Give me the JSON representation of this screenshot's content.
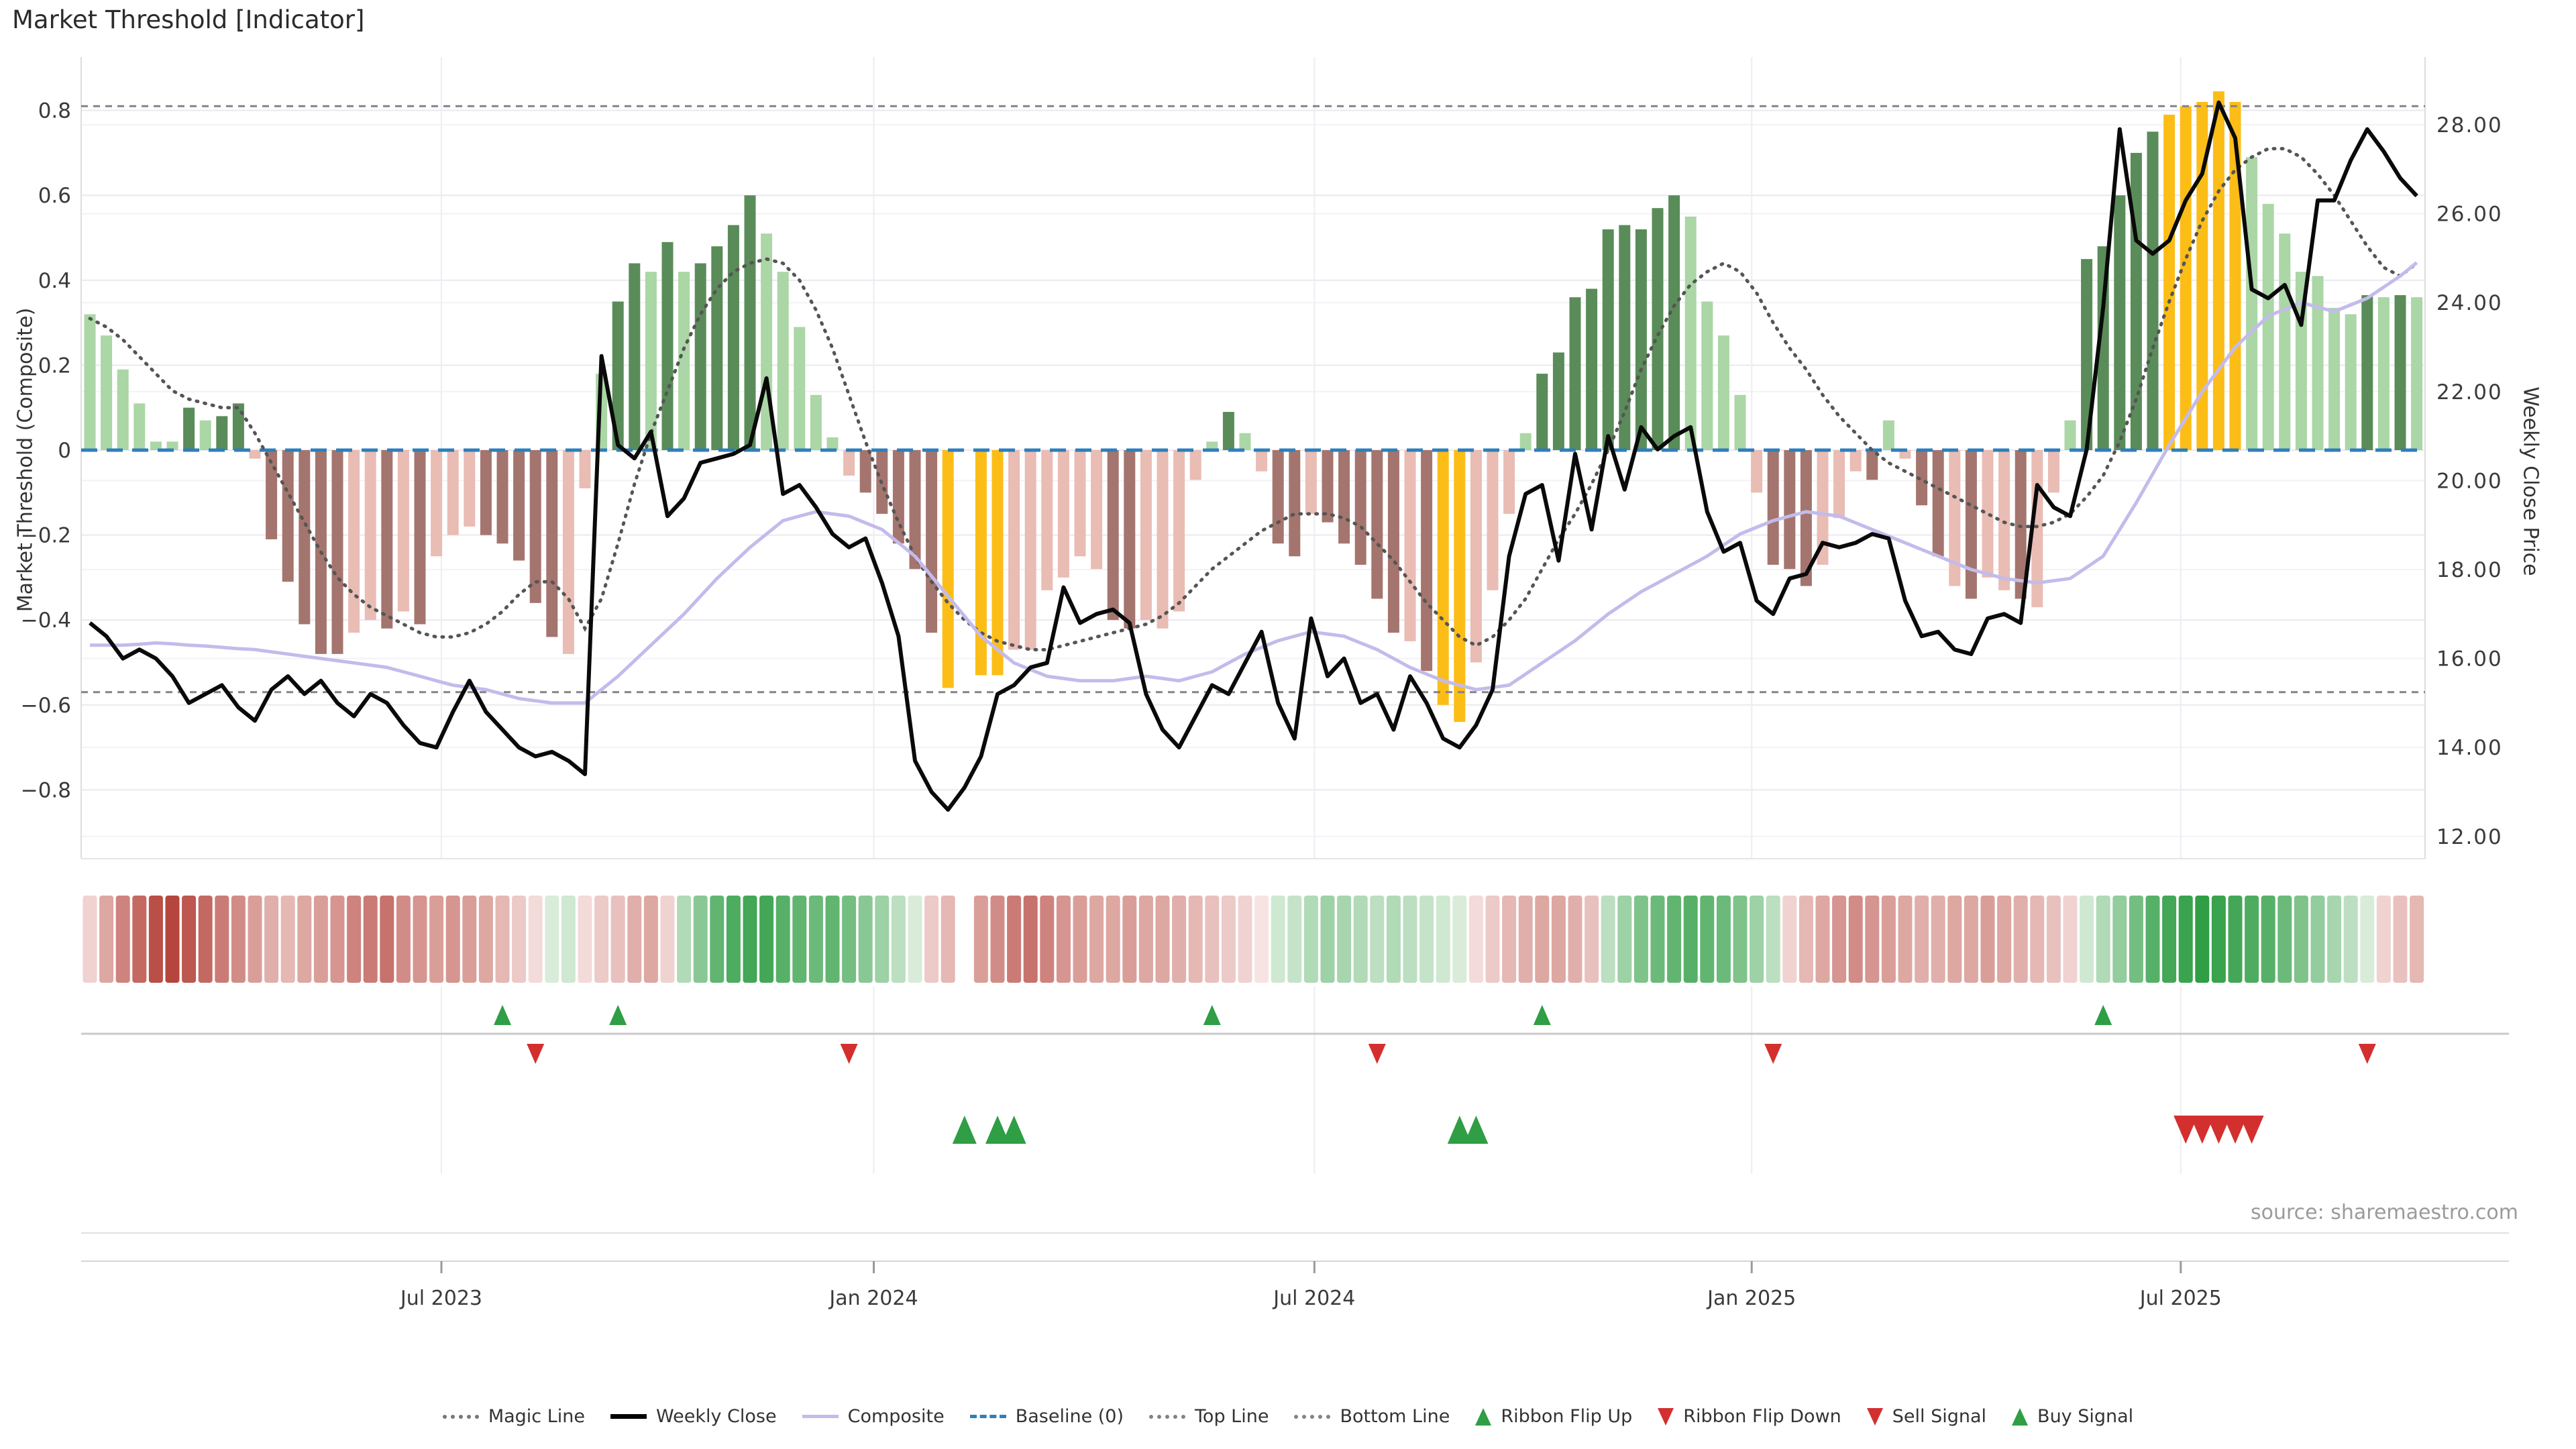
{
  "title": "Market Threshold [Indicator]",
  "source_note": "source: sharemaestro.com",
  "axes": {
    "left_label": "Market Threshold (Composite)",
    "right_label": "Weekly Close Price",
    "left_ticks": [
      {
        "v": 0.8,
        "label": "0.8"
      },
      {
        "v": 0.6,
        "label": "0.6"
      },
      {
        "v": 0.4,
        "label": "0.4"
      },
      {
        "v": 0.2,
        "label": "0.2"
      },
      {
        "v": 0.0,
        "label": "0"
      },
      {
        "v": -0.2,
        "label": "−0.2"
      },
      {
        "v": -0.4,
        "label": "−0.4"
      },
      {
        "v": -0.6,
        "label": "−0.6"
      },
      {
        "v": -0.8,
        "label": "−0.8"
      }
    ],
    "right_ticks": [
      {
        "v": 28,
        "label": "28.00"
      },
      {
        "v": 26,
        "label": "26.00"
      },
      {
        "v": 24,
        "label": "24.00"
      },
      {
        "v": 22,
        "label": "22.00"
      },
      {
        "v": 20,
        "label": "20.00"
      },
      {
        "v": 18,
        "label": "18.00"
      },
      {
        "v": 16,
        "label": "16.00"
      },
      {
        "v": 14,
        "label": "14.00"
      },
      {
        "v": 12,
        "label": "12.00"
      }
    ],
    "x_ticks": [
      {
        "label": "Jul 2023",
        "week": 21.3
      },
      {
        "label": "Jan 2024",
        "week": 47.5
      },
      {
        "label": "Jul 2024",
        "week": 74.2
      },
      {
        "label": "Jan 2025",
        "week": 100.7
      },
      {
        "label": "Jul 2025",
        "week": 126.7
      }
    ]
  },
  "chart_data": {
    "type": "bar+line combo (weekly)",
    "weeks": 142,
    "top_line": 0.81,
    "bottom_line": -0.57,
    "baseline": 0,
    "threshold_ylim": [
      -0.95,
      0.93
    ],
    "price_ylim": [
      11.5,
      28.6
    ],
    "threshold_values": [
      0.32,
      0.27,
      0.19,
      0.11,
      0.02,
      0.02,
      0.1,
      0.07,
      0.08,
      0.11,
      -0.02,
      -0.21,
      -0.31,
      -0.41,
      -0.48,
      -0.48,
      -0.43,
      -0.4,
      -0.42,
      -0.38,
      -0.41,
      -0.25,
      -0.2,
      -0.18,
      -0.2,
      -0.22,
      -0.26,
      -0.36,
      -0.44,
      -0.48,
      -0.09,
      0.18,
      0.35,
      0.44,
      0.42,
      0.49,
      0.42,
      0.44,
      0.48,
      0.53,
      0.6,
      0.51,
      0.42,
      0.29,
      0.13,
      0.03,
      -0.06,
      -0.1,
      -0.15,
      -0.22,
      -0.28,
      -0.43,
      -0.56,
      null,
      -0.53,
      -0.53,
      -0.47,
      -0.47,
      -0.33,
      -0.3,
      -0.25,
      -0.28,
      -0.4,
      -0.42,
      -0.4,
      -0.42,
      -0.38,
      -0.07,
      0.02,
      0.09,
      0.04,
      -0.05,
      -0.22,
      -0.25,
      -0.15,
      -0.17,
      -0.22,
      -0.27,
      -0.35,
      -0.43,
      -0.45,
      -0.52,
      -0.6,
      -0.64,
      -0.5,
      -0.33,
      -0.15,
      0.04,
      0.18,
      0.23,
      0.36,
      0.38,
      0.52,
      0.53,
      0.52,
      0.57,
      0.6,
      0.55,
      0.35,
      0.27,
      0.13,
      -0.1,
      -0.27,
      -0.28,
      -0.32,
      -0.27,
      -0.16,
      -0.05,
      -0.07,
      0.07,
      -0.02,
      -0.13,
      -0.25,
      -0.32,
      -0.35,
      -0.3,
      -0.33,
      -0.35,
      -0.37,
      -0.1,
      0.07,
      0.45,
      0.48,
      0.6,
      0.7,
      0.75,
      0.79,
      0.81,
      0.82,
      0.845,
      0.82,
      0.69,
      0.58,
      0.51,
      0.42,
      0.41,
      0.335,
      0.32,
      0.365,
      0.36,
      0.365,
      0.36
    ],
    "threshold_bar_styles": [
      "lg",
      "lg",
      "lg",
      "lg",
      "lg",
      "lg",
      "dg",
      "lg",
      "dg",
      "dg",
      "pk",
      "dr",
      "dr",
      "dr",
      "dr",
      "dr",
      "pk",
      "pk",
      "dr",
      "pk",
      "dr",
      "pk",
      "pk",
      "pk",
      "dr",
      "dr",
      "dr",
      "dr",
      "dr",
      "pk",
      "pk",
      "lg",
      "dg",
      "dg",
      "lg",
      "dg",
      "lg",
      "dg",
      "dg",
      "dg",
      "dg",
      "lg",
      "lg",
      "lg",
      "lg",
      "lg",
      "pk",
      "dr",
      "dr",
      "dr",
      "dr",
      "dr",
      "gd",
      null,
      "gd",
      "gd",
      "pk",
      "pk",
      "pk",
      "pk",
      "pk",
      "pk",
      "dr",
      "dr",
      "pk",
      "pk",
      "pk",
      "pk",
      "lg",
      "dg",
      "lg",
      "pk",
      "dr",
      "dr",
      "pk",
      "dr",
      "dr",
      "dr",
      "dr",
      "dr",
      "pk",
      "dr",
      "gd",
      "gd",
      "pk",
      "pk",
      "pk",
      "lg",
      "dg",
      "dg",
      "dg",
      "dg",
      "dg",
      "dg",
      "dg",
      "dg",
      "dg",
      "lg",
      "lg",
      "lg",
      "lg",
      "pk",
      "dr",
      "dr",
      "dr",
      "pk",
      "pk",
      "pk",
      "dr",
      "lg",
      "pk",
      "dr",
      "dr",
      "pk",
      "dr",
      "pk",
      "pk",
      "dr",
      "pk",
      "pk",
      "lg",
      "dg",
      "dg",
      "dg",
      "dg",
      "dg",
      "gd",
      "gd",
      "gd",
      "gd",
      "gd",
      "lg",
      "lg",
      "lg",
      "lg",
      "lg",
      "lg",
      "lg",
      "dg",
      "lg",
      "dg",
      "lg"
    ],
    "weekly_close": [
      16.8,
      16.5,
      16.0,
      16.2,
      16.0,
      15.6,
      15.0,
      15.2,
      15.4,
      14.9,
      14.6,
      15.3,
      15.6,
      15.2,
      15.5,
      15.0,
      14.7,
      15.2,
      15.0,
      14.5,
      14.1,
      14.0,
      14.8,
      15.5,
      14.8,
      14.4,
      14.0,
      13.8,
      13.9,
      13.7,
      13.4,
      22.8,
      20.8,
      20.5,
      21.1,
      19.2,
      19.6,
      20.4,
      20.5,
      20.6,
      20.8,
      22.3,
      19.7,
      19.9,
      19.4,
      18.8,
      18.5,
      18.7,
      17.7,
      16.5,
      13.7,
      13.0,
      12.6,
      13.1,
      13.8,
      15.2,
      15.4,
      15.8,
      15.9,
      17.6,
      16.8,
      17.0,
      17.1,
      16.8,
      15.2,
      14.4,
      14.0,
      14.7,
      15.4,
      15.2,
      15.9,
      16.6,
      15.0,
      14.2,
      16.9,
      15.6,
      16.0,
      15.0,
      15.2,
      14.4,
      15.6,
      15.0,
      14.2,
      14.0,
      14.5,
      15.3,
      18.3,
      19.7,
      19.9,
      18.2,
      20.6,
      18.9,
      21.0,
      19.8,
      21.2,
      20.7,
      21.0,
      21.2,
      19.3,
      18.4,
      18.6,
      17.3,
      17.0,
      17.8,
      17.9,
      18.6,
      18.5,
      18.6,
      18.8,
      18.7,
      17.3,
      16.5,
      16.6,
      16.2,
      16.1,
      16.9,
      17.0,
      16.8,
      19.9,
      19.4,
      19.2,
      20.7,
      23.9,
      27.9,
      25.4,
      25.1,
      25.4,
      26.3,
      26.9,
      28.5,
      27.7,
      24.3,
      24.1,
      24.4,
      23.5,
      26.3,
      26.3,
      27.2,
      27.9,
      27.4,
      26.8,
      26.4
    ],
    "composite_line": [
      16.3,
      16.3,
      16.3,
      16.32,
      16.35,
      16.33,
      16.3,
      16.28,
      16.25,
      16.22,
      16.2,
      16.15,
      16.1,
      16.05,
      16.0,
      15.95,
      15.9,
      15.85,
      15.8,
      15.7,
      15.6,
      15.5,
      15.4,
      15.35,
      15.3,
      15.2,
      15.1,
      15.05,
      15.0,
      15.0,
      15.0,
      15.3,
      15.6,
      15.95,
      16.3,
      16.65,
      17.0,
      17.4,
      17.8,
      18.15,
      18.5,
      18.8,
      19.1,
      19.2,
      19.3,
      19.25,
      19.2,
      19.05,
      18.9,
      18.6,
      18.3,
      17.85,
      17.4,
      16.95,
      16.5,
      16.2,
      15.9,
      15.75,
      15.6,
      15.55,
      15.5,
      15.5,
      15.5,
      15.55,
      15.6,
      15.55,
      15.5,
      15.6,
      15.7,
      15.9,
      16.1,
      16.25,
      16.4,
      16.5,
      16.6,
      16.55,
      16.5,
      16.35,
      16.2,
      16.0,
      15.8,
      15.65,
      15.5,
      15.4,
      15.3,
      15.35,
      15.4,
      15.65,
      15.9,
      16.15,
      16.4,
      16.7,
      17.0,
      17.25,
      17.5,
      17.7,
      17.9,
      18.1,
      18.3,
      18.55,
      18.8,
      18.95,
      19.1,
      19.2,
      19.3,
      19.25,
      19.2,
      19.05,
      18.9,
      18.75,
      18.6,
      18.45,
      18.3,
      18.15,
      18.0,
      17.9,
      17.8,
      17.75,
      17.7,
      17.75,
      17.8,
      18.05,
      18.3,
      18.9,
      19.5,
      20.15,
      20.8,
      21.4,
      22.0,
      22.5,
      23.0,
      23.35,
      23.7,
      23.85,
      24.0,
      23.9,
      23.8,
      23.95,
      24.1,
      24.35,
      24.6,
      24.9
    ],
    "magic_line": [
      0.31,
      0.29,
      0.26,
      0.22,
      0.18,
      0.14,
      0.12,
      0.11,
      0.1,
      0.1,
      0.04,
      -0.03,
      -0.1,
      -0.17,
      -0.24,
      -0.3,
      -0.34,
      -0.37,
      -0.39,
      -0.41,
      -0.43,
      -0.44,
      -0.44,
      -0.43,
      -0.41,
      -0.38,
      -0.34,
      -0.31,
      -0.31,
      -0.35,
      -0.42,
      -0.35,
      -0.22,
      -0.08,
      0.04,
      0.14,
      0.24,
      0.32,
      0.38,
      0.42,
      0.44,
      0.45,
      0.44,
      0.4,
      0.33,
      0.24,
      0.13,
      0.02,
      -0.08,
      -0.17,
      -0.25,
      -0.31,
      -0.36,
      -0.4,
      -0.43,
      -0.45,
      -0.46,
      -0.47,
      -0.47,
      -0.46,
      -0.45,
      -0.44,
      -0.43,
      -0.42,
      -0.41,
      -0.39,
      -0.36,
      -0.32,
      -0.28,
      -0.25,
      -0.22,
      -0.19,
      -0.17,
      -0.15,
      -0.15,
      -0.15,
      -0.16,
      -0.18,
      -0.22,
      -0.26,
      -0.31,
      -0.36,
      -0.4,
      -0.44,
      -0.46,
      -0.44,
      -0.4,
      -0.35,
      -0.28,
      -0.21,
      -0.15,
      -0.08,
      0.0,
      0.09,
      0.19,
      0.27,
      0.34,
      0.39,
      0.42,
      0.44,
      0.42,
      0.37,
      0.3,
      0.24,
      0.19,
      0.13,
      0.08,
      0.04,
      0.0,
      -0.03,
      -0.05,
      -0.07,
      -0.09,
      -0.11,
      -0.13,
      -0.15,
      -0.17,
      -0.18,
      -0.18,
      -0.17,
      -0.15,
      -0.11,
      -0.06,
      0.02,
      0.12,
      0.24,
      0.35,
      0.45,
      0.54,
      0.61,
      0.66,
      0.69,
      0.71,
      0.71,
      0.69,
      0.65,
      0.6,
      0.54,
      0.48,
      0.43,
      0.41,
      0.44
    ],
    "ribbon": [
      -0.2,
      -0.45,
      -0.65,
      -0.8,
      -0.95,
      -1.0,
      -0.9,
      -0.8,
      -0.7,
      -0.6,
      -0.5,
      -0.4,
      -0.35,
      -0.45,
      -0.5,
      -0.55,
      -0.65,
      -0.7,
      -0.75,
      -0.6,
      -0.55,
      -0.5,
      -0.55,
      -0.5,
      -0.45,
      -0.35,
      -0.25,
      -0.15,
      0.15,
      0.2,
      -0.15,
      -0.25,
      -0.3,
      -0.4,
      -0.45,
      -0.2,
      0.35,
      0.55,
      0.75,
      0.85,
      0.9,
      0.9,
      0.8,
      0.75,
      0.7,
      0.75,
      0.65,
      0.55,
      0.45,
      0.3,
      0.15,
      -0.25,
      -0.35,
      null,
      -0.5,
      -0.6,
      -0.7,
      -0.75,
      -0.65,
      -0.55,
      -0.5,
      -0.45,
      -0.45,
      -0.5,
      -0.45,
      -0.45,
      -0.4,
      -0.35,
      -0.3,
      -0.25,
      -0.2,
      -0.1,
      0.2,
      0.25,
      0.35,
      0.45,
      0.4,
      0.35,
      0.3,
      0.35,
      0.3,
      0.25,
      0.2,
      0.15,
      -0.15,
      -0.25,
      -0.35,
      -0.4,
      -0.45,
      -0.45,
      -0.4,
      -0.3,
      0.3,
      0.45,
      0.6,
      0.7,
      0.75,
      0.8,
      0.75,
      0.7,
      0.6,
      0.45,
      0.3,
      -0.2,
      -0.35,
      -0.45,
      -0.55,
      -0.6,
      -0.55,
      -0.5,
      -0.45,
      -0.4,
      -0.4,
      -0.45,
      -0.45,
      -0.5,
      -0.45,
      -0.4,
      -0.35,
      -0.3,
      -0.2,
      0.2,
      0.35,
      0.5,
      0.65,
      0.8,
      0.9,
      0.95,
      1.0,
      0.95,
      0.9,
      0.85,
      0.8,
      0.7,
      0.6,
      0.5,
      0.4,
      0.3,
      0.15,
      -0.2,
      -0.3,
      -0.35
    ],
    "signals": {
      "ribbon_flip_up_weeks": [
        25,
        32,
        68,
        88,
        122
      ],
      "ribbon_flip_down_weeks": [
        27,
        46,
        78,
        102,
        138
      ],
      "buy_signal_weeks": [
        53,
        55,
        56,
        83,
        84
      ],
      "sell_signal_weeks": [
        127,
        128,
        129,
        130,
        131
      ]
    }
  },
  "colors": {
    "bar_light_green": "#abd6a6",
    "bar_dark_green": "#5a8c59",
    "bar_pink": "#e9bcb4",
    "bar_dark_red": "#a4756e",
    "bar_gold": "#fcbd17",
    "weekly_close_line": "#0a0a0a",
    "composite_line": "#c3bbeb",
    "magic_line": "#555555",
    "baseline": "#2e7ebb",
    "top_bottom_line": "#838383",
    "signal_green": "#2f9e44",
    "signal_red": "#d32f2f",
    "ribbon_red_deep": "#b5463e",
    "ribbon_red_light": "#f7e4e2",
    "ribbon_green_deep": "#2f9e45",
    "ribbon_green_light": "#e3f1e3"
  },
  "legend": [
    {
      "label": "Magic Line",
      "marker": "dotted-line",
      "color": "#777777"
    },
    {
      "label": "Weekly Close",
      "marker": "solid-line-black",
      "color": "#000000"
    },
    {
      "label": "Composite",
      "marker": "solid-line-purple",
      "color": "#c3bbeb"
    },
    {
      "label": "Baseline (0)",
      "marker": "dashed-line",
      "color": "#2e7ebb"
    },
    {
      "label": "Top Line",
      "marker": "dotted-line",
      "color": "#838383"
    },
    {
      "label": "Bottom Line",
      "marker": "dotted-line",
      "color": "#838383"
    },
    {
      "label": "Ribbon Flip Up",
      "marker": "triangle-up",
      "color": "#2f9e44"
    },
    {
      "label": "Ribbon Flip Down",
      "marker": "triangle-down",
      "color": "#d32f2f"
    },
    {
      "label": "Sell Signal",
      "marker": "triangle-down",
      "color": "#d32f2f"
    },
    {
      "label": "Buy Signal",
      "marker": "triangle-up",
      "color": "#2f9e44"
    }
  ]
}
